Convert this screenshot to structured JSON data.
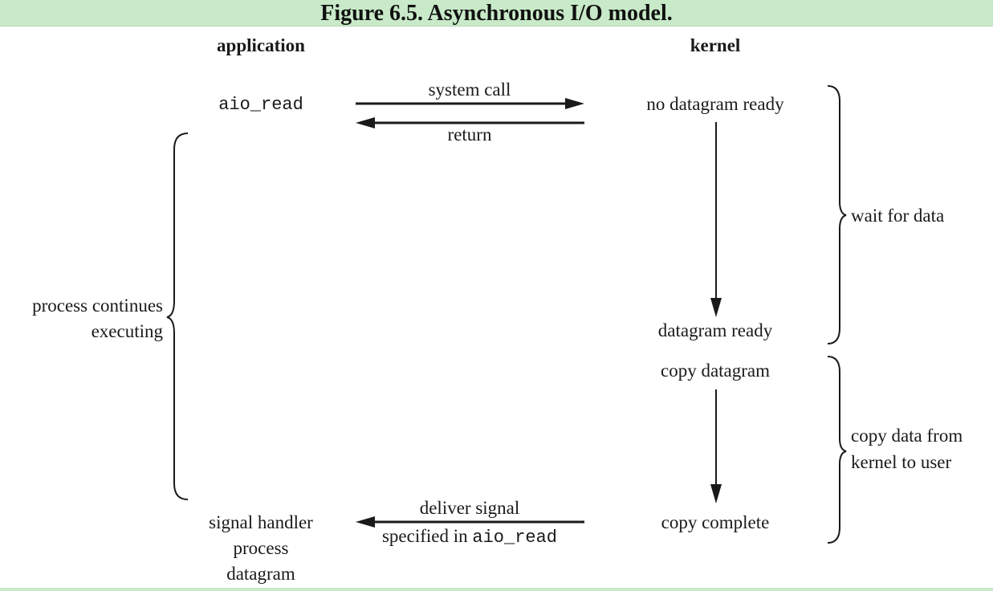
{
  "title": "Figure 6.5. Asynchronous I/O model.",
  "columns": {
    "application": "application",
    "kernel": "kernel"
  },
  "application": {
    "call": "aio_read",
    "handler_line1": "signal handler",
    "handler_line2": "process",
    "handler_line3": "datagram",
    "continues_line1": "process continues",
    "continues_line2": "executing"
  },
  "kernel": {
    "no_datagram": "no datagram ready",
    "datagram_ready": "datagram ready",
    "copy_datagram": "copy datagram",
    "copy_complete": "copy complete"
  },
  "arrows": {
    "system_call": "system call",
    "return": "return",
    "deliver_signal": "deliver signal",
    "specified_in": "specified in ",
    "specified_fn": "aio_read"
  },
  "phases": {
    "wait": "wait for data",
    "copy_line1": "copy data from",
    "copy_line2": "kernel to user"
  }
}
